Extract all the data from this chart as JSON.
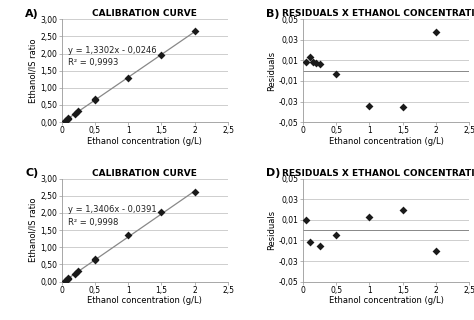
{
  "panel_A": {
    "label": "A)",
    "title": "CALIBRATION CURVE",
    "xlabel": "Ethanol concentration (g/L)",
    "ylabel": "Ethanol/IS ratio",
    "xlim": [
      0,
      2.5
    ],
    "ylim": [
      0,
      3.0
    ],
    "xticks": [
      0,
      0.5,
      1,
      1.5,
      2,
      2.5
    ],
    "yticks": [
      0.0,
      0.5,
      1.0,
      1.5,
      2.0,
      2.5,
      3.0
    ],
    "xticklabels": [
      "0",
      "0,5",
      "1",
      "1,5",
      "2",
      "2,5"
    ],
    "yticklabels": [
      "0,00",
      "0,50",
      "1,00",
      "1,50",
      "2,00",
      "2,50",
      "3,00"
    ],
    "equation": "y = 1,3302x - 0,0246",
    "r2": "R² = 0,9993",
    "slope": 1.3302,
    "intercept": -0.0246,
    "x_data": [
      0.05,
      0.1,
      0.1,
      0.2,
      0.25,
      0.5,
      0.5,
      1.0,
      1.5,
      2.0
    ],
    "y_data": [
      0.04,
      0.09,
      0.11,
      0.24,
      0.31,
      0.64,
      0.68,
      1.28,
      1.96,
      2.65
    ]
  },
  "panel_B": {
    "label": "B)",
    "title": "RESIDUALS X ETHANOL CONCENTRATION",
    "xlabel": "Ethanol concentration (g/L)",
    "ylabel": "Residuals",
    "xlim": [
      0,
      2.5
    ],
    "ylim": [
      -0.05,
      0.05
    ],
    "xticks": [
      0,
      0.5,
      1,
      1.5,
      2,
      2.5
    ],
    "yticks": [
      -0.05,
      -0.03,
      -0.01,
      0.01,
      0.03,
      0.05
    ],
    "xticklabels": [
      "0",
      "0,5",
      "1",
      "1,5",
      "2",
      "2,5"
    ],
    "yticklabels": [
      "-0,05",
      "-0,03",
      "-0,01",
      "0,01",
      "0,03",
      "0,05"
    ],
    "x_data": [
      0.05,
      0.1,
      0.15,
      0.2,
      0.25,
      0.5,
      1.0,
      1.5,
      2.0
    ],
    "y_data": [
      0.008,
      0.013,
      0.008,
      0.007,
      0.006,
      -0.003,
      -0.034,
      -0.035,
      0.038
    ]
  },
  "panel_C": {
    "label": "C)",
    "title": "CALIBRATION CURVE",
    "xlabel": "Ethanol concentration (g/L)",
    "ylabel": "Ethanol/IS ratio",
    "xlim": [
      0,
      2.5
    ],
    "ylim": [
      0,
      3.0
    ],
    "xticks": [
      0,
      0.5,
      1,
      1.5,
      2,
      2.5
    ],
    "yticks": [
      0.0,
      0.5,
      1.0,
      1.5,
      2.0,
      2.5,
      3.0
    ],
    "xticklabels": [
      "0",
      "0,5",
      "1",
      "1,5",
      "2",
      "2,5"
    ],
    "yticklabels": [
      "0,00",
      "0,50",
      "1,00",
      "1,50",
      "2,00",
      "2,50",
      "3,00"
    ],
    "equation": "y = 1,3406x - 0,0391",
    "r2": "R² = 0,9998",
    "slope": 1.3406,
    "intercept": -0.0391,
    "x_data": [
      0.05,
      0.1,
      0.1,
      0.2,
      0.25,
      0.5,
      0.5,
      1.0,
      1.5,
      2.0
    ],
    "y_data": [
      0.03,
      0.09,
      0.1,
      0.23,
      0.3,
      0.63,
      0.65,
      1.35,
      2.02,
      2.62
    ]
  },
  "panel_D": {
    "label": "D)",
    "title": "RESIDUALS X ETHANOL CONCENTRATION",
    "xlabel": "Ethanol concentration (g/L)",
    "ylabel": "Residuals",
    "xlim": [
      0,
      2.5
    ],
    "ylim": [
      -0.05,
      0.05
    ],
    "xticks": [
      0,
      0.5,
      1,
      1.5,
      2,
      2.5
    ],
    "yticks": [
      -0.05,
      -0.03,
      -0.01,
      0.01,
      0.03,
      0.05
    ],
    "xticklabels": [
      "0",
      "0,5",
      "1",
      "1,5",
      "2",
      "2,5"
    ],
    "yticklabels": [
      "-0,05",
      "-0,03",
      "-0,01",
      "0,01",
      "0,03",
      "0,05"
    ],
    "x_data": [
      0.05,
      0.1,
      0.25,
      0.5,
      1.0,
      1.5,
      2.0
    ],
    "y_data": [
      0.01,
      -0.012,
      -0.015,
      -0.005,
      0.013,
      0.02,
      -0.02
    ]
  },
  "marker": "D",
  "marker_size": 4,
  "marker_color": "#1a1a1a",
  "line_color": "#888888",
  "font_size_title": 6.5,
  "font_size_label": 6,
  "font_size_tick": 5.5,
  "font_size_annot": 6,
  "font_size_panel_label": 8,
  "background_color": "#ffffff",
  "grid_color": "#bbbbbb"
}
